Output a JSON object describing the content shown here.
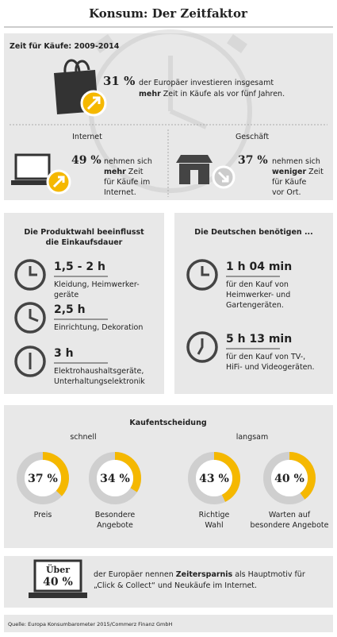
{
  "title": "Konsum: Der Zeitfaktor",
  "time": {
    "heading": "Zeit für Käufe: 2009-2014",
    "overall": {
      "value": "31 %",
      "line_1": "der Europäer investieren insgesamt",
      "bold": "mehr",
      "line_2": "Zeit in Käufe als vor fünf Jahren."
    },
    "internet": {
      "label": "Internet",
      "value": "49 %",
      "line_1": "nehmen sich",
      "bold": "mehr",
      "line_2": "Zeit",
      "line_3": "für Käufe im",
      "line_4": "Internet."
    },
    "shop": {
      "label": "Geschäft",
      "value": "37 %",
      "line_1": "nehmen sich",
      "bold": "weniger",
      "line_2": "Zeit",
      "line_3": "für Käufe",
      "line_4": "vor Ort."
    }
  },
  "products": {
    "heading_1": "Die Produktwahl beeinflusst",
    "heading_2": "die Einkaufsdauer",
    "items": [
      {
        "value": "1,5 - 2 h",
        "line_1": "Kleidung, Heimwerker-",
        "line_2": "geräte"
      },
      {
        "value": "2,5 h",
        "line_1": "Einrichtung, Dekoration"
      },
      {
        "value": "3 h",
        "line_1": "Elektrohaushaltsgeräte,",
        "line_2": "Unterhaltungselektronik"
      }
    ]
  },
  "germans": {
    "heading": "Die Deutschen benötigen ...",
    "items": [
      {
        "value": "1 h 04 min",
        "line_1": "für den Kauf von",
        "line_2": "Heimwerker- und",
        "line_3": "Gartengeräten."
      },
      {
        "value": "5 h 13 min",
        "line_1": "für den Kauf von TV-,",
        "line_2": "HiFi- und Videogeräten."
      }
    ]
  },
  "decision": {
    "heading": "Kaufentscheidung",
    "group_1": "schnell",
    "group_2": "langsam",
    "color": "#f5b800",
    "track_color": "#cfcfcf",
    "items": [
      {
        "value": 37,
        "value_label": "37 %",
        "line_1": "Preis"
      },
      {
        "value": 34,
        "value_label": "34 %",
        "line_1": "Besondere",
        "line_2": "Angebote"
      },
      {
        "value": 43,
        "value_label": "43 %",
        "line_1": "Richtige",
        "line_2": "Wahl"
      },
      {
        "value": 40,
        "value_label": "40 %",
        "line_1": "Warten auf",
        "line_2": "besondere Angebote"
      }
    ]
  },
  "savings": {
    "badge_1": "Über",
    "badge_2": "40 %",
    "line_1a": "der Europäer nennen",
    "bold": "Zeitersparnis",
    "line_1b": "als Hauptmotiv für",
    "line_2": "„Click & Collect“ und Neukäufe im Internet."
  },
  "source": "Quelle: Europa Konsumbarometer 2015/Commerz Finanz GmbH"
}
